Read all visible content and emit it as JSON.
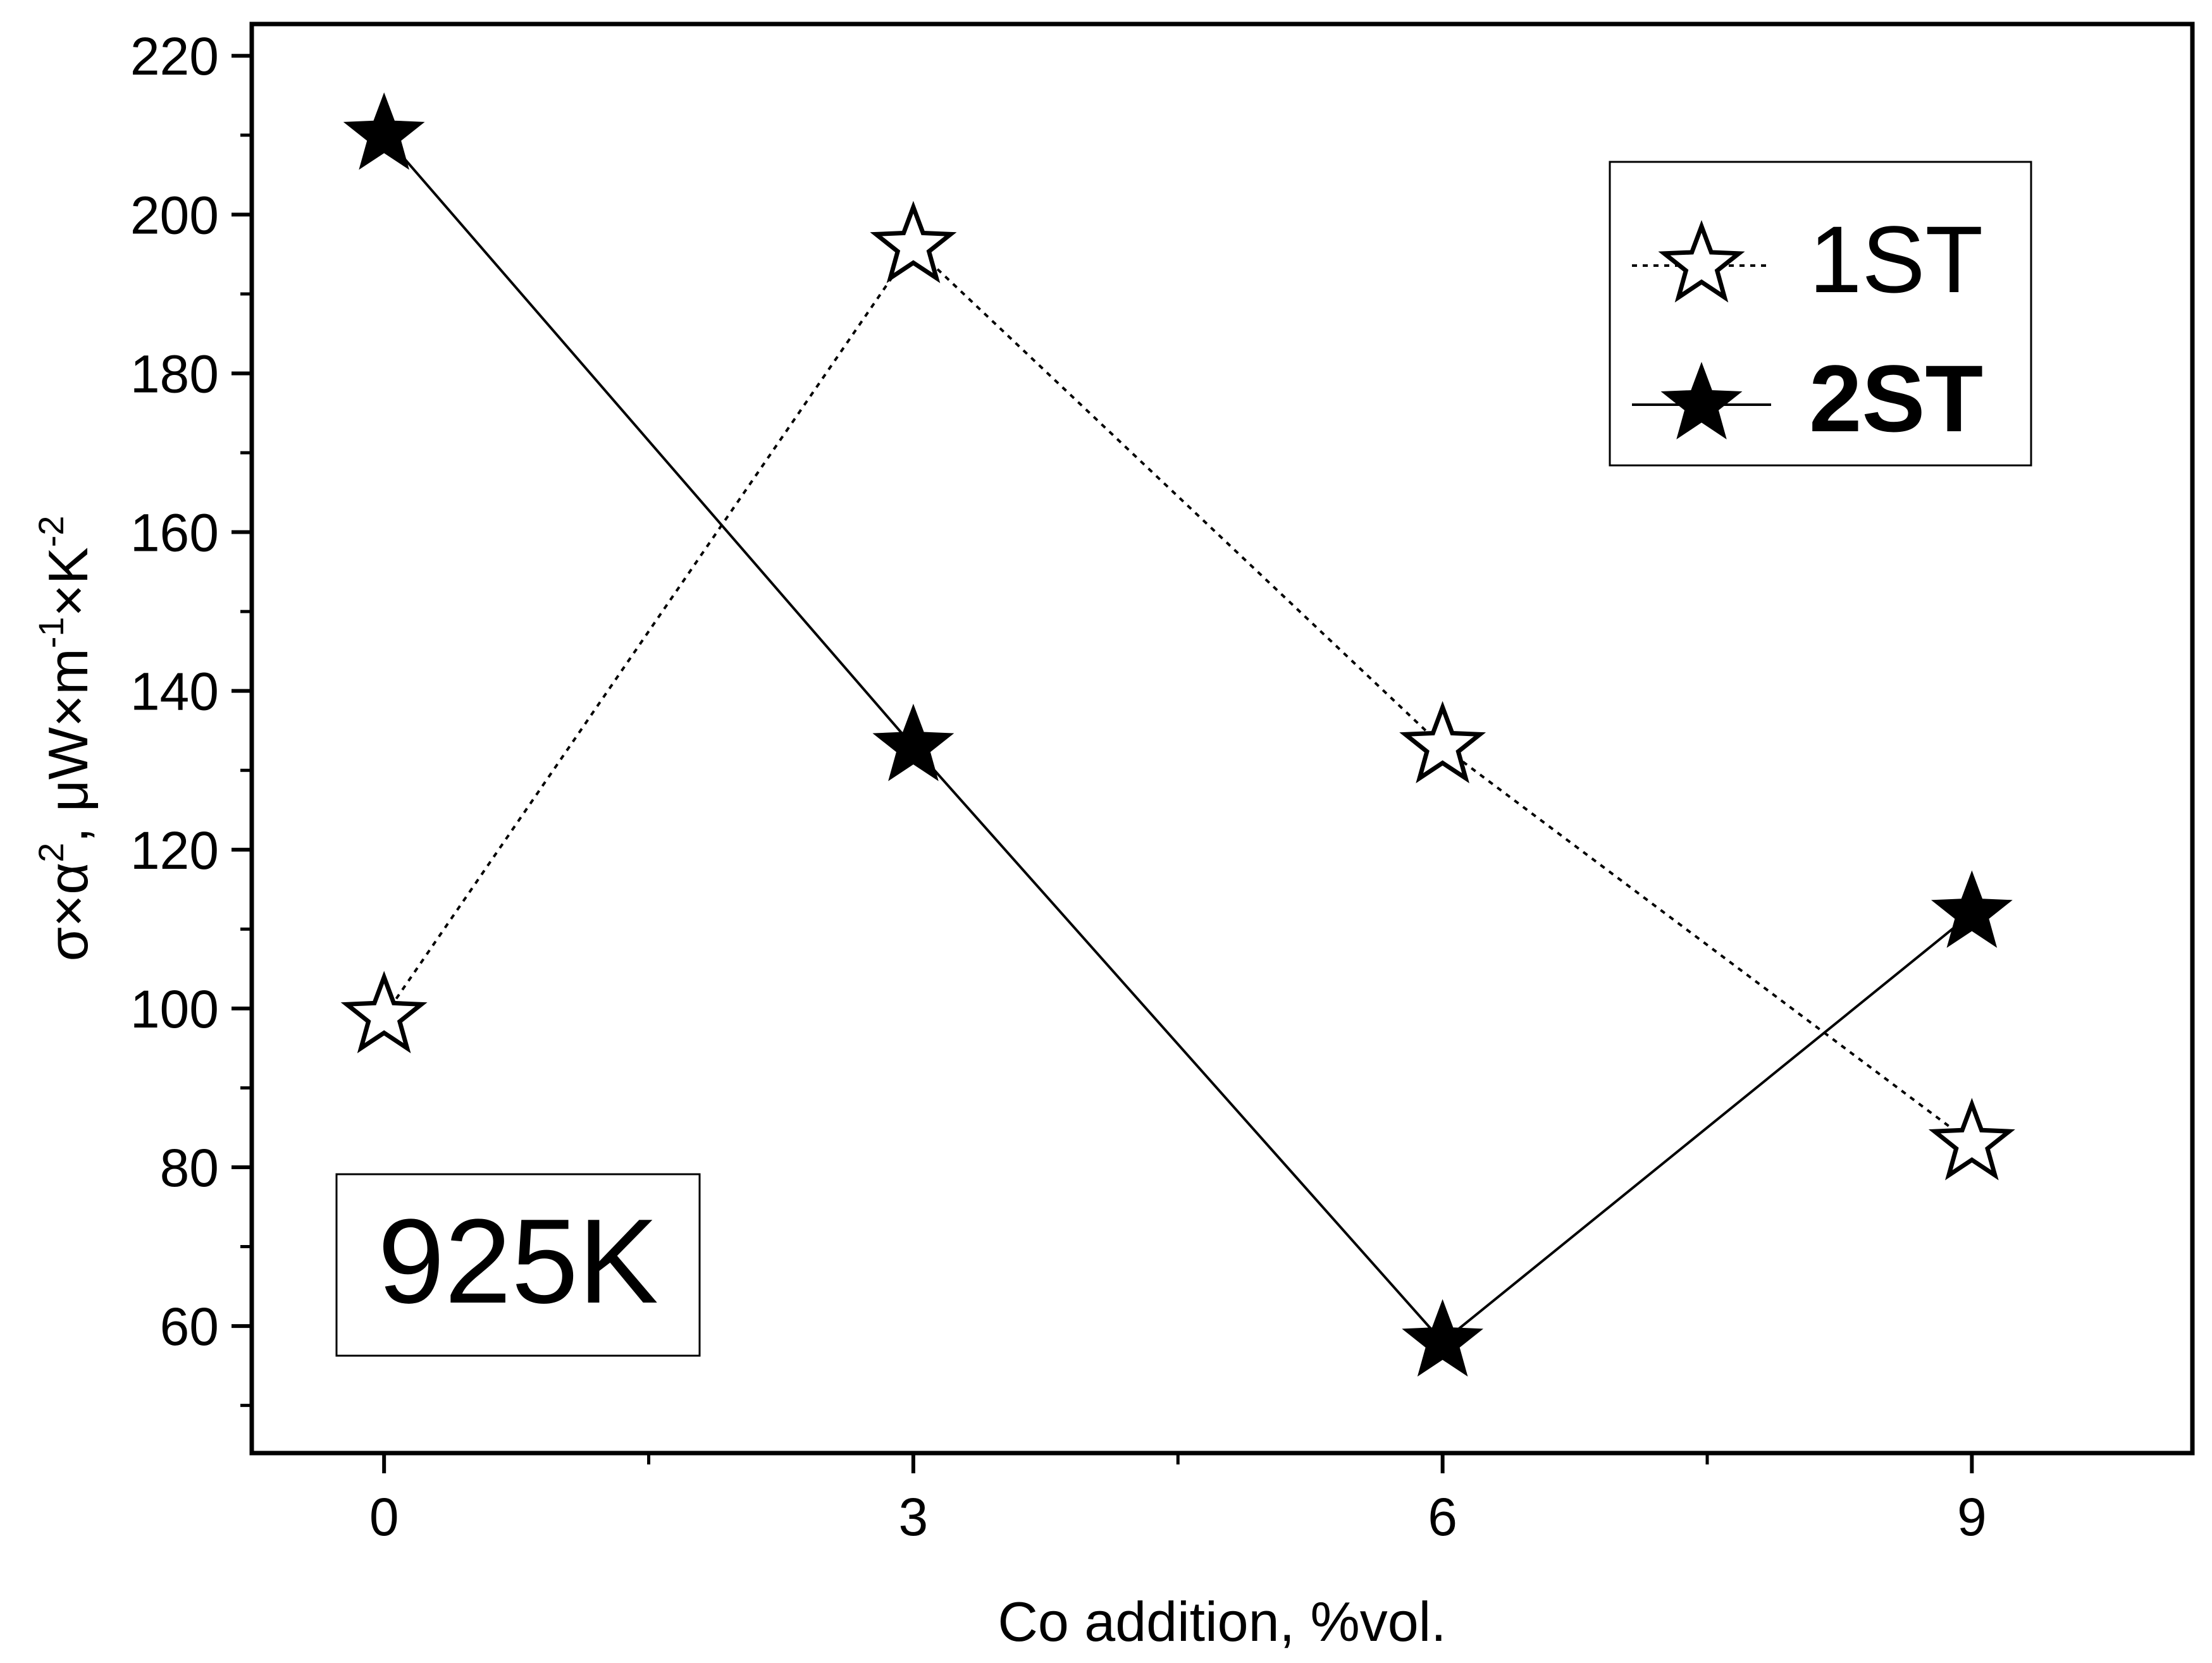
{
  "chart_data": {
    "type": "line",
    "xlabel": "Co addition, %vol.",
    "ylabel": {
      "text": "σ×α², μW×m⁻¹×K⁻²",
      "parts": [
        "σ×α",
        "2",
        ", μW×m",
        "-1",
        "×K",
        "-2"
      ]
    },
    "xlim": [
      -0.75,
      10.25
    ],
    "ylim": [
      44,
      224
    ],
    "xticks": [
      0,
      3,
      6,
      9
    ],
    "xtick_labels": [
      "0",
      "3",
      "6",
      "9"
    ],
    "yticks": [
      60,
      80,
      100,
      120,
      140,
      160,
      180,
      200,
      220
    ],
    "ytick_labels": [
      "60",
      "80",
      "100",
      "120",
      "140",
      "160",
      "180",
      "200",
      "220"
    ],
    "grid": false,
    "legend_position": "top-right",
    "series": [
      {
        "name": "1ST",
        "line": "dotted",
        "marker": "star-open",
        "x": [
          0,
          3,
          6,
          9
        ],
        "y": [
          99,
          196,
          133,
          83
        ]
      },
      {
        "name": "2ST",
        "line": "solid",
        "marker": "star-filled",
        "x": [
          0,
          3,
          6,
          9
        ],
        "y": [
          210,
          133,
          58,
          112
        ]
      }
    ],
    "annotation": "925K"
  }
}
